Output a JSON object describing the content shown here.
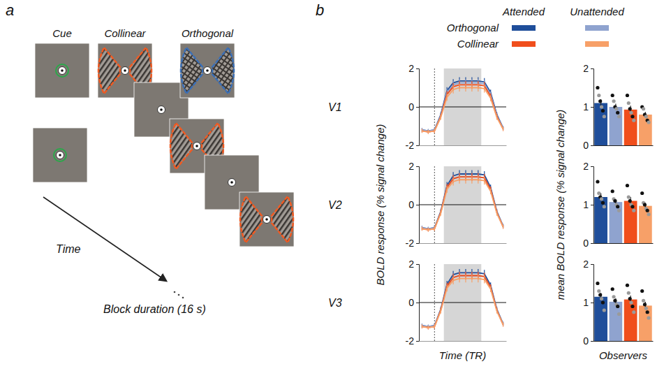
{
  "figure": {
    "panel_a": {
      "letter": "a",
      "cue": "Cue",
      "collinear": "Collinear",
      "orthogonal": "Orthogonal",
      "time_label": "Time",
      "block_label": "Block duration (16 s)"
    },
    "panel_b": {
      "letter": "b",
      "legend": {
        "columns": [
          "Attended",
          "Unattended"
        ],
        "rows": [
          "Orthogonal",
          "Collinear"
        ]
      },
      "line_y_title": "BOLD response (% signal change)",
      "line_x_title": "Time (TR)",
      "bar_y_title": "mean BOLD response (% signal change)",
      "bar_x_title": "Observers"
    }
  },
  "chart_data": [
    {
      "type": "line",
      "title": "V1",
      "x": [
        0,
        1,
        2,
        3,
        4,
        5,
        6,
        7,
        8,
        9,
        10,
        11,
        12,
        13
      ],
      "xlim": [
        -0.5,
        13.5
      ],
      "ylim": [
        -2,
        2
      ],
      "yticks": [
        -2,
        0,
        2
      ],
      "tick_labels": "y",
      "onset_x": 2,
      "stimulus_x": [
        3.5,
        9.5
      ],
      "series": [
        {
          "color": "#1f4e9a",
          "values": [
            -1.2,
            -1.25,
            -1.2,
            -0.4,
            0.85,
            1.25,
            1.35,
            1.35,
            1.35,
            1.35,
            1.3,
            0.75,
            -0.4,
            -1.1
          ],
          "errors": [
            0.1,
            0.1,
            0.1,
            0.12,
            0.18,
            0.2,
            0.2,
            0.2,
            0.2,
            0.2,
            0.2,
            0.15,
            0.12,
            0.1
          ]
        },
        {
          "color": "#8fa3cf",
          "values": [
            -1.2,
            -1.25,
            -1.2,
            -0.45,
            0.75,
            1.15,
            1.25,
            1.25,
            1.25,
            1.25,
            1.2,
            0.65,
            -0.45,
            -1.1
          ],
          "errors": [
            0.1,
            0.1,
            0.1,
            0.12,
            0.18,
            0.2,
            0.2,
            0.2,
            0.2,
            0.2,
            0.2,
            0.15,
            0.12,
            0.1
          ]
        },
        {
          "color": "#f04e1c",
          "values": [
            -1.25,
            -1.3,
            -1.25,
            -0.5,
            0.65,
            1.05,
            1.15,
            1.15,
            1.15,
            1.15,
            1.1,
            0.55,
            -0.5,
            -1.15
          ],
          "errors": [
            0.1,
            0.1,
            0.1,
            0.12,
            0.18,
            0.2,
            0.2,
            0.2,
            0.2,
            0.2,
            0.2,
            0.15,
            0.12,
            0.1
          ]
        },
        {
          "color": "#f7a068",
          "values": [
            -1.25,
            -1.3,
            -1.25,
            -0.55,
            0.5,
            0.9,
            1.0,
            1.0,
            1.0,
            1.0,
            0.95,
            0.45,
            -0.55,
            -1.15
          ],
          "errors": [
            0.1,
            0.1,
            0.1,
            0.12,
            0.18,
            0.2,
            0.2,
            0.2,
            0.2,
            0.2,
            0.2,
            0.15,
            0.12,
            0.1
          ]
        }
      ]
    },
    {
      "type": "line",
      "title": "V2",
      "x": [
        0,
        1,
        2,
        3,
        4,
        5,
        6,
        7,
        8,
        9,
        10,
        11,
        12,
        13
      ],
      "xlim": [
        -0.5,
        13.5
      ],
      "ylim": [
        -2,
        2
      ],
      "yticks": [
        -2,
        0,
        2
      ],
      "tick_labels": "y",
      "onset_x": 2,
      "stimulus_x": [
        3.5,
        9.5
      ],
      "series": [
        {
          "color": "#1f4e9a",
          "values": [
            -1.2,
            -1.25,
            -1.2,
            -0.35,
            1.0,
            1.5,
            1.6,
            1.6,
            1.6,
            1.6,
            1.55,
            0.9,
            -0.35,
            -1.1
          ],
          "errors": [
            0.1,
            0.1,
            0.1,
            0.12,
            0.18,
            0.2,
            0.2,
            0.2,
            0.2,
            0.2,
            0.2,
            0.15,
            0.12,
            0.1
          ]
        },
        {
          "color": "#8fa3cf",
          "values": [
            -1.2,
            -1.25,
            -1.2,
            -0.4,
            0.9,
            1.35,
            1.45,
            1.45,
            1.45,
            1.45,
            1.4,
            0.8,
            -0.4,
            -1.1
          ],
          "errors": [
            0.1,
            0.1,
            0.1,
            0.12,
            0.18,
            0.2,
            0.2,
            0.2,
            0.2,
            0.2,
            0.2,
            0.15,
            0.12,
            0.1
          ]
        },
        {
          "color": "#f04e1c",
          "values": [
            -1.25,
            -1.3,
            -1.25,
            -0.4,
            0.9,
            1.35,
            1.45,
            1.45,
            1.45,
            1.45,
            1.4,
            0.8,
            -0.4,
            -1.15
          ],
          "errors": [
            0.1,
            0.1,
            0.1,
            0.12,
            0.18,
            0.2,
            0.2,
            0.2,
            0.2,
            0.2,
            0.2,
            0.15,
            0.12,
            0.1
          ]
        },
        {
          "color": "#f7a068",
          "values": [
            -1.25,
            -1.3,
            -1.25,
            -0.45,
            0.8,
            1.2,
            1.3,
            1.3,
            1.3,
            1.3,
            1.25,
            0.7,
            -0.45,
            -1.15
          ],
          "errors": [
            0.1,
            0.1,
            0.1,
            0.12,
            0.18,
            0.2,
            0.2,
            0.2,
            0.2,
            0.2,
            0.2,
            0.15,
            0.12,
            0.1
          ]
        }
      ]
    },
    {
      "type": "line",
      "title": "V3",
      "x": [
        0,
        1,
        2,
        3,
        4,
        5,
        6,
        7,
        8,
        9,
        10,
        11,
        12,
        13
      ],
      "xlim": [
        -0.5,
        13.5
      ],
      "ylim": [
        -2,
        2
      ],
      "yticks": [
        -2,
        0,
        2
      ],
      "tick_labels": "y",
      "onset_x": 2,
      "stimulus_x": [
        3.5,
        9.5
      ],
      "series": [
        {
          "color": "#1f4e9a",
          "values": [
            -1.2,
            -1.25,
            -1.2,
            -0.35,
            0.95,
            1.45,
            1.55,
            1.55,
            1.55,
            1.55,
            1.5,
            0.9,
            -0.35,
            -1.1
          ],
          "errors": [
            0.1,
            0.1,
            0.1,
            0.12,
            0.18,
            0.2,
            0.2,
            0.2,
            0.2,
            0.2,
            0.2,
            0.15,
            0.12,
            0.1
          ]
        },
        {
          "color": "#8fa3cf",
          "values": [
            -1.2,
            -1.25,
            -1.2,
            -0.4,
            0.85,
            1.3,
            1.4,
            1.4,
            1.4,
            1.4,
            1.35,
            0.8,
            -0.4,
            -1.1
          ],
          "errors": [
            0.1,
            0.1,
            0.1,
            0.12,
            0.18,
            0.2,
            0.2,
            0.2,
            0.2,
            0.2,
            0.2,
            0.15,
            0.12,
            0.1
          ]
        },
        {
          "color": "#f04e1c",
          "values": [
            -1.25,
            -1.3,
            -1.25,
            -0.4,
            0.85,
            1.3,
            1.4,
            1.4,
            1.4,
            1.4,
            1.35,
            0.8,
            -0.4,
            -1.15
          ],
          "errors": [
            0.1,
            0.1,
            0.1,
            0.12,
            0.18,
            0.2,
            0.2,
            0.2,
            0.2,
            0.2,
            0.2,
            0.15,
            0.12,
            0.1
          ]
        },
        {
          "color": "#f7a068",
          "values": [
            -1.25,
            -1.3,
            -1.25,
            -0.45,
            0.75,
            1.15,
            1.25,
            1.25,
            1.25,
            1.25,
            1.2,
            0.7,
            -0.45,
            -1.15
          ],
          "errors": [
            0.1,
            0.1,
            0.1,
            0.12,
            0.18,
            0.2,
            0.2,
            0.2,
            0.2,
            0.2,
            0.2,
            0.15,
            0.12,
            0.1
          ]
        }
      ]
    },
    {
      "type": "bar",
      "categories": [
        null,
        null,
        null,
        null
      ],
      "values": [
        1.1,
        1.0,
        0.93,
        0.8
      ],
      "errors": [
        0.1,
        0.08,
        0.1,
        0.07
      ],
      "colors": [
        "#1f4e9a",
        "#8fa3cf",
        "#f04e1c",
        "#f7a068"
      ],
      "ylim": [
        0,
        2
      ],
      "yticks": [
        0,
        1,
        2
      ],
      "tick_labels": "y",
      "observers": [
        [
          1.5,
          1.3,
          1.15,
          1.0,
          0.9,
          0.75
        ],
        [
          1.3,
          1.15,
          1.0,
          0.95,
          0.85,
          0.75
        ],
        [
          1.3,
          1.1,
          0.95,
          0.85,
          0.75,
          0.65
        ],
        [
          1.0,
          0.95,
          0.8,
          0.75,
          0.65,
          0.6
        ]
      ]
    },
    {
      "type": "bar",
      "categories": [
        null,
        null,
        null,
        null
      ],
      "values": [
        1.2,
        1.07,
        1.1,
        0.97
      ],
      "errors": [
        0.1,
        0.07,
        0.1,
        0.08
      ],
      "colors": [
        "#1f4e9a",
        "#8fa3cf",
        "#f04e1c",
        "#f7a068"
      ],
      "ylim": [
        0,
        2
      ],
      "yticks": [
        0,
        1,
        2
      ],
      "tick_labels": "y",
      "observers": [
        [
          1.6,
          1.3,
          1.2,
          1.15,
          1.05,
          0.95
        ],
        [
          1.35,
          1.15,
          1.1,
          1.0,
          0.95,
          0.85
        ],
        [
          1.5,
          1.2,
          1.1,
          1.0,
          0.95,
          0.85
        ],
        [
          1.3,
          1.05,
          1.0,
          0.9,
          0.85,
          0.75
        ]
      ]
    },
    {
      "type": "bar",
      "categories": [
        null,
        null,
        null,
        null
      ],
      "values": [
        1.15,
        1.02,
        1.08,
        0.92
      ],
      "errors": [
        0.1,
        0.09,
        0.1,
        0.1
      ],
      "colors": [
        "#1f4e9a",
        "#8fa3cf",
        "#f04e1c",
        "#f7a068"
      ],
      "ylim": [
        0,
        2
      ],
      "yticks": [
        0,
        1,
        2
      ],
      "tick_labels": "y",
      "observers": [
        [
          1.5,
          1.3,
          1.2,
          1.1,
          1.0,
          0.8
        ],
        [
          1.35,
          1.15,
          1.05,
          0.95,
          0.9,
          0.7
        ],
        [
          1.45,
          1.25,
          1.1,
          1.0,
          0.9,
          0.75
        ],
        [
          1.3,
          1.05,
          0.95,
          0.85,
          0.75,
          0.6
        ]
      ]
    }
  ]
}
